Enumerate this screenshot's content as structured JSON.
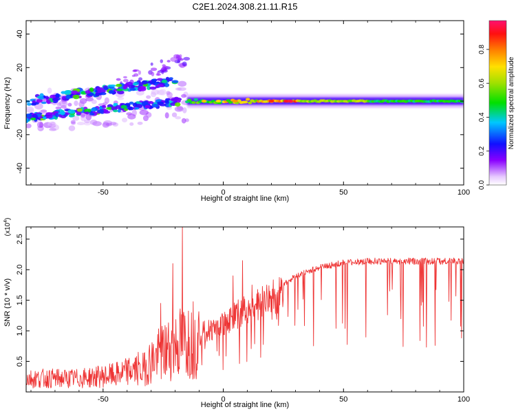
{
  "title": "C2E1.2024.308.21.11.R15",
  "colors": {
    "snr_line": "#ee3333",
    "background": "#ffffff",
    "axis": "#000000"
  },
  "chart_data": [
    {
      "type": "heatmap",
      "title": "C2E1.2024.308.21.11.R15",
      "xlabel": "Height of straight line (km)",
      "ylabel": "Frequency (Hz)",
      "xlim": [
        -82,
        100
      ],
      "ylim": [
        -50,
        48
      ],
      "xticks": [
        -50,
        0,
        50,
        100
      ],
      "xtick_labels": [
        "-50",
        "0",
        "50",
        "100"
      ],
      "yticks": [
        -40,
        -20,
        0,
        20,
        40
      ],
      "ytick_labels": [
        "-40",
        "-20",
        "0",
        "20",
        "40"
      ],
      "colorbar": {
        "label": "Normalized spectral amplitude",
        "range": [
          0,
          0.97
        ],
        "ticks": [
          0.0,
          0.2,
          0.4,
          0.6,
          0.8
        ],
        "tick_labels": [
          "0.0",
          "0.2",
          "0.4",
          "0.6",
          "0.8"
        ],
        "colormap": "rainbow (white, violet, blue, cyan, green, yellow, orange, red, magenta)"
      },
      "features": [
        {
          "segment": "lower scattered branch",
          "x_range": [
            -82,
            -18
          ],
          "freq_start": -10,
          "freq_end": 2
        },
        {
          "segment": "upper scattered branch",
          "x_range": [
            -82,
            -20
          ],
          "freq_start": 0,
          "freq_end": 12
        },
        {
          "segment": "upper faint tail",
          "x_range": [
            -45,
            -15
          ],
          "freq_start": 12,
          "freq_end": 30
        },
        {
          "segment": "converged near-zero band",
          "x_range": [
            -15,
            100
          ],
          "freq_center": 0
        }
      ]
    },
    {
      "type": "line",
      "xlabel": "Height of straight line (km)",
      "ylabel": "SNR (10 * v/v)",
      "y_scale_label": "(x10^4)",
      "xlim": [
        -82,
        100
      ],
      "ylim": [
        0,
        2.7
      ],
      "xticks": [
        -50,
        0,
        50,
        100
      ],
      "xtick_labels": [
        "-50",
        "0",
        "50",
        "100"
      ],
      "yticks": [
        0.5,
        1.0,
        1.5,
        2.0,
        2.5
      ],
      "ytick_labels": [
        "0.5",
        "1.0",
        "1.5",
        "2.0",
        "2.5"
      ],
      "series": [
        {
          "envelope": {
            "x": [
              -82,
              -60,
              -45,
              -35,
              -30,
              -25,
              -20,
              -15,
              -10,
              -5,
              0,
              5,
              10,
              20,
              30,
              40,
              50,
              60,
              70,
              80,
              90,
              100
            ],
            "y": [
              0.2,
              0.2,
              0.25,
              0.35,
              0.6,
              0.75,
              0.9,
              1.0,
              1.05,
              1.1,
              1.2,
              1.35,
              1.45,
              1.65,
              1.9,
              2.05,
              2.12,
              2.15,
              2.15,
              2.15,
              2.15,
              2.15
            ]
          },
          "spikes": [
            {
              "x": -17,
              "y": 2.7
            },
            {
              "x": -21,
              "y": 2.1
            },
            {
              "x": -26,
              "y": 1.45
            },
            {
              "x": 8,
              "y": 2.15
            },
            {
              "x": 4,
              "y": 1.9
            },
            {
              "x": 12,
              "y": 1.75
            }
          ]
        }
      ]
    }
  ]
}
